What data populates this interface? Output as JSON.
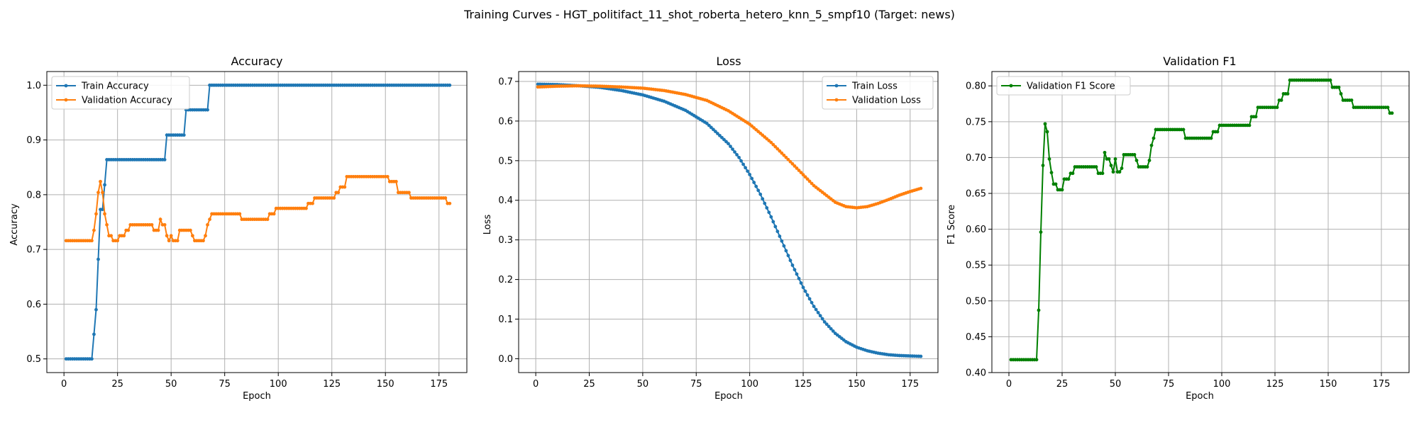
{
  "figure": {
    "suptitle": "Training Curves - HGT_politifact_11_shot_roberta_hetero_knn_5_smpf10 (Target: news)"
  },
  "colors": {
    "blue": "#1f77b4",
    "orange": "#ff7f0e",
    "green": "#008000",
    "grid": "#b0b0b0"
  },
  "chart_data": [
    {
      "type": "line",
      "title": "Accuracy",
      "xlabel": "Epoch",
      "ylabel": "Accuracy",
      "xlim": [
        -8,
        188
      ],
      "ylim": [
        0.475,
        1.025
      ],
      "xticks": [
        0,
        25,
        50,
        75,
        100,
        125,
        150,
        175
      ],
      "yticks": [
        0.5,
        0.6,
        0.7,
        0.8,
        0.9,
        1.0
      ],
      "ytick_labels": [
        "0.5",
        "0.6",
        "0.7",
        "0.8",
        "0.9",
        "1.0"
      ],
      "grid": true,
      "legend": "top-left",
      "series": [
        {
          "name": "Train Accuracy",
          "color": "#1f77b4",
          "points": [
            [
              1,
              0.5
            ],
            [
              13,
              0.5
            ],
            [
              14,
              0.545
            ],
            [
              15,
              0.59
            ],
            [
              16,
              0.682
            ],
            [
              17,
              0.773
            ],
            [
              18,
              0.773
            ],
            [
              19,
              0.818
            ],
            [
              20,
              0.864
            ],
            [
              47,
              0.864
            ],
            [
              48,
              0.909
            ],
            [
              56,
              0.909
            ],
            [
              57,
              0.955
            ],
            [
              67,
              0.955
            ],
            [
              68,
              1.0
            ],
            [
              180,
              1.0
            ]
          ]
        },
        {
          "name": "Validation Accuracy",
          "color": "#ff7f0e",
          "points": [
            [
              1,
              0.716
            ],
            [
              13,
              0.716
            ],
            [
              14,
              0.735
            ],
            [
              15,
              0.765
            ],
            [
              16,
              0.804
            ],
            [
              17,
              0.824
            ],
            [
              18,
              0.804
            ],
            [
              19,
              0.765
            ],
            [
              20,
              0.745
            ],
            [
              21,
              0.725
            ],
            [
              22,
              0.725
            ],
            [
              23,
              0.716
            ],
            [
              25,
              0.716
            ],
            [
              26,
              0.725
            ],
            [
              28,
              0.725
            ],
            [
              29,
              0.735
            ],
            [
              30,
              0.735
            ],
            [
              31,
              0.745
            ],
            [
              41,
              0.745
            ],
            [
              42,
              0.735
            ],
            [
              44,
              0.735
            ],
            [
              45,
              0.755
            ],
            [
              46,
              0.745
            ],
            [
              47,
              0.745
            ],
            [
              48,
              0.725
            ],
            [
              49,
              0.716
            ],
            [
              50,
              0.725
            ],
            [
              51,
              0.716
            ],
            [
              53,
              0.716
            ],
            [
              54,
              0.735
            ],
            [
              59,
              0.735
            ],
            [
              60,
              0.725
            ],
            [
              61,
              0.716
            ],
            [
              65,
              0.716
            ],
            [
              66,
              0.725
            ],
            [
              67,
              0.745
            ],
            [
              68,
              0.755
            ],
            [
              69,
              0.765
            ],
            [
              82,
              0.765
            ],
            [
              83,
              0.755
            ],
            [
              95,
              0.755
            ],
            [
              96,
              0.765
            ],
            [
              98,
              0.765
            ],
            [
              99,
              0.775
            ],
            [
              113,
              0.775
            ],
            [
              114,
              0.784
            ],
            [
              116,
              0.784
            ],
            [
              117,
              0.794
            ],
            [
              126,
              0.794
            ],
            [
              127,
              0.804
            ],
            [
              128,
              0.804
            ],
            [
              129,
              0.814
            ],
            [
              131,
              0.814
            ],
            [
              132,
              0.833
            ],
            [
              151,
              0.833
            ],
            [
              152,
              0.824
            ],
            [
              155,
              0.824
            ],
            [
              156,
              0.804
            ],
            [
              161,
              0.804
            ],
            [
              162,
              0.794
            ],
            [
              178,
              0.794
            ],
            [
              179,
              0.784
            ],
            [
              180,
              0.784
            ]
          ]
        }
      ]
    },
    {
      "type": "line",
      "title": "Loss",
      "xlabel": "Epoch",
      "ylabel": "Loss",
      "xlim": [
        -8,
        188
      ],
      "ylim": [
        -0.035,
        0.725
      ],
      "xticks": [
        0,
        25,
        50,
        75,
        100,
        125,
        150,
        175
      ],
      "yticks": [
        0.0,
        0.1,
        0.2,
        0.3,
        0.4,
        0.5,
        0.6,
        0.7
      ],
      "ytick_labels": [
        "0.0",
        "0.1",
        "0.2",
        "0.3",
        "0.4",
        "0.5",
        "0.6",
        "0.7"
      ],
      "grid": true,
      "legend": "top-right",
      "series": [
        {
          "name": "Train Loss",
          "color": "#1f77b4",
          "points": [
            [
              1,
              0.693
            ],
            [
              10,
              0.692
            ],
            [
              20,
              0.689
            ],
            [
              30,
              0.685
            ],
            [
              40,
              0.677
            ],
            [
              50,
              0.666
            ],
            [
              60,
              0.65
            ],
            [
              70,
              0.627
            ],
            [
              80,
              0.594
            ],
            [
              90,
              0.543
            ],
            [
              95,
              0.508
            ],
            [
              100,
              0.465
            ],
            [
              105,
              0.415
            ],
            [
              110,
              0.358
            ],
            [
              115,
              0.297
            ],
            [
              120,
              0.236
            ],
            [
              125,
              0.18
            ],
            [
              130,
              0.132
            ],
            [
              135,
              0.093
            ],
            [
              140,
              0.064
            ],
            [
              145,
              0.043
            ],
            [
              150,
              0.029
            ],
            [
              155,
              0.02
            ],
            [
              160,
              0.014
            ],
            [
              165,
              0.01
            ],
            [
              170,
              0.008
            ],
            [
              175,
              0.007
            ],
            [
              180,
              0.006
            ]
          ]
        },
        {
          "name": "Validation Loss",
          "color": "#ff7f0e",
          "points": [
            [
              1,
              0.686
            ],
            [
              10,
              0.688
            ],
            [
              20,
              0.689
            ],
            [
              30,
              0.688
            ],
            [
              40,
              0.686
            ],
            [
              50,
              0.683
            ],
            [
              60,
              0.677
            ],
            [
              70,
              0.667
            ],
            [
              80,
              0.652
            ],
            [
              90,
              0.626
            ],
            [
              100,
              0.592
            ],
            [
              110,
              0.546
            ],
            [
              120,
              0.492
            ],
            [
              130,
              0.437
            ],
            [
              140,
              0.395
            ],
            [
              145,
              0.384
            ],
            [
              150,
              0.381
            ],
            [
              155,
              0.384
            ],
            [
              160,
              0.392
            ],
            [
              165,
              0.402
            ],
            [
              170,
              0.413
            ],
            [
              175,
              0.422
            ],
            [
              180,
              0.43
            ]
          ]
        }
      ]
    },
    {
      "type": "line",
      "title": "Validation F1",
      "xlabel": "Epoch",
      "ylabel": "F1 Score",
      "xlim": [
        -8,
        188
      ],
      "ylim": [
        0.4,
        0.82
      ],
      "xticks": [
        0,
        25,
        50,
        75,
        100,
        125,
        150,
        175
      ],
      "yticks": [
        0.4,
        0.45,
        0.5,
        0.55,
        0.6,
        0.65,
        0.7,
        0.75,
        0.8
      ],
      "ytick_labels": [
        "0.40",
        "0.45",
        "0.50",
        "0.55",
        "0.60",
        "0.65",
        "0.70",
        "0.75",
        "0.80"
      ],
      "grid": true,
      "legend": "top-left",
      "series": [
        {
          "name": "Validation F1 Score",
          "color": "#008000",
          "points": [
            [
              1,
              0.418
            ],
            [
              13,
              0.418
            ],
            [
              14,
              0.487
            ],
            [
              15,
              0.596
            ],
            [
              16,
              0.689
            ],
            [
              17,
              0.747
            ],
            [
              18,
              0.736
            ],
            [
              19,
              0.698
            ],
            [
              20,
              0.679
            ],
            [
              21,
              0.663
            ],
            [
              22,
              0.663
            ],
            [
              23,
              0.655
            ],
            [
              25,
              0.655
            ],
            [
              26,
              0.67
            ],
            [
              28,
              0.67
            ],
            [
              29,
              0.678
            ],
            [
              30,
              0.678
            ],
            [
              31,
              0.687
            ],
            [
              41,
              0.687
            ],
            [
              42,
              0.678
            ],
            [
              44,
              0.678
            ],
            [
              45,
              0.707
            ],
            [
              46,
              0.698
            ],
            [
              47,
              0.698
            ],
            [
              48,
              0.689
            ],
            [
              49,
              0.68
            ],
            [
              50,
              0.698
            ],
            [
              51,
              0.68
            ],
            [
              52,
              0.68
            ],
            [
              53,
              0.685
            ],
            [
              54,
              0.704
            ],
            [
              59,
              0.704
            ],
            [
              60,
              0.696
            ],
            [
              61,
              0.687
            ],
            [
              65,
              0.687
            ],
            [
              66,
              0.696
            ],
            [
              67,
              0.717
            ],
            [
              68,
              0.727
            ],
            [
              69,
              0.739
            ],
            [
              82,
              0.739
            ],
            [
              83,
              0.727
            ],
            [
              95,
              0.727
            ],
            [
              96,
              0.736
            ],
            [
              98,
              0.736
            ],
            [
              99,
              0.745
            ],
            [
              113,
              0.745
            ],
            [
              114,
              0.757
            ],
            [
              116,
              0.757
            ],
            [
              117,
              0.77
            ],
            [
              126,
              0.77
            ],
            [
              127,
              0.78
            ],
            [
              128,
              0.78
            ],
            [
              129,
              0.789
            ],
            [
              131,
              0.789
            ],
            [
              132,
              0.808
            ],
            [
              151,
              0.808
            ],
            [
              152,
              0.798
            ],
            [
              155,
              0.798
            ],
            [
              156,
              0.789
            ],
            [
              157,
              0.78
            ],
            [
              161,
              0.78
            ],
            [
              162,
              0.77
            ],
            [
              178,
              0.77
            ],
            [
              179,
              0.762
            ],
            [
              180,
              0.762
            ]
          ]
        }
      ]
    }
  ]
}
